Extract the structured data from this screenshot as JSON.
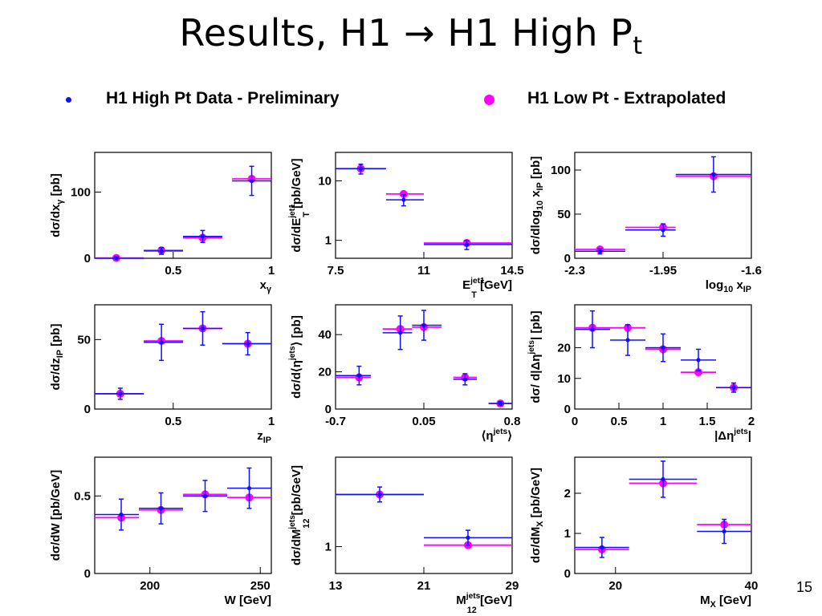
{
  "slide": {
    "title_main": "Results, H1 → H1 High P",
    "title_sub": "t",
    "page_number": "15"
  },
  "legend": {
    "data_label": "H1 High Pt Data - Preliminary",
    "data_color": "#1010ff",
    "pred_label": "H1 Low Pt - Extrapolated",
    "pred_color": "#ff00ff"
  },
  "chart_data": [
    {
      "type": "scatter",
      "xlim": [
        0.1,
        1.0
      ],
      "ylim": [
        0,
        160
      ],
      "ylog": false,
      "xticks": [
        {
          "v": 0.5,
          "l": "0.5"
        },
        {
          "v": 1,
          "l": "1"
        }
      ],
      "yticks": [
        {
          "v": 0,
          "l": "0"
        },
        {
          "v": 100,
          "l": "100"
        }
      ],
      "ylabel": [
        {
          "t": "dσ/dx"
        },
        {
          "t": "γ",
          "s": "sub"
        },
        {
          "t": " [pb]"
        }
      ],
      "xlabel": [
        {
          "t": "x"
        },
        {
          "t": "γ",
          "s": "sub"
        }
      ],
      "data": [
        {
          "x": 0.21,
          "xlo": 0.1,
          "xhi": 0.35,
          "y": 0,
          "yerr": 2
        },
        {
          "x": 0.44,
          "xlo": 0.35,
          "xhi": 0.55,
          "y": 11,
          "yerr": 5
        },
        {
          "x": 0.65,
          "xlo": 0.55,
          "xhi": 0.75,
          "y": 33,
          "yerr": 9
        },
        {
          "x": 0.9,
          "xlo": 0.8,
          "xhi": 1.0,
          "y": 117,
          "yerr": 22
        }
      ],
      "pred": [
        {
          "x": 0.21,
          "xlo": 0.1,
          "xhi": 0.35,
          "y": 0.5
        },
        {
          "x": 0.44,
          "xlo": 0.35,
          "xhi": 0.55,
          "y": 12
        },
        {
          "x": 0.65,
          "xlo": 0.55,
          "xhi": 0.75,
          "y": 31
        },
        {
          "x": 0.9,
          "xlo": 0.8,
          "xhi": 1.0,
          "y": 120
        }
      ]
    },
    {
      "type": "scatter",
      "xlim": [
        7.5,
        14.5
      ],
      "ylim": [
        0.5,
        30
      ],
      "ylog": true,
      "xticks": [
        {
          "v": 7.5,
          "l": "7.5"
        },
        {
          "v": 11,
          "l": "11"
        },
        {
          "v": 14.5,
          "l": "14.5"
        }
      ],
      "yticks": [
        {
          "v": 1,
          "l": "1"
        },
        {
          "v": 10,
          "l": "10"
        }
      ],
      "ylabel": [
        {
          "t": "dσ/dE"
        },
        {
          "t": "jet1",
          "s": "sup"
        },
        {
          "t": "T",
          "s": "subk"
        },
        {
          "t": " [pb/GeV]"
        }
      ],
      "xlabel": [
        {
          "t": "E"
        },
        {
          "t": "jet1",
          "s": "sup"
        },
        {
          "t": "T",
          "s": "subk"
        },
        {
          "t": " [GeV]"
        }
      ],
      "data": [
        {
          "x": 8.5,
          "xlo": 7.5,
          "xhi": 9.5,
          "y": 16,
          "yerr": 3
        },
        {
          "x": 10.2,
          "xlo": 9.5,
          "xhi": 11,
          "y": 4.8,
          "yerr": 1
        },
        {
          "x": 12.7,
          "xlo": 11,
          "xhi": 14.5,
          "y": 0.85,
          "yerr": 0.15
        }
      ],
      "pred": [
        {
          "x": 8.5,
          "xlo": 7.5,
          "xhi": 9.5,
          "y": 16
        },
        {
          "x": 10.2,
          "xlo": 9.5,
          "xhi": 11,
          "y": 6
        },
        {
          "x": 12.7,
          "xlo": 11,
          "xhi": 14.5,
          "y": 0.9
        }
      ]
    },
    {
      "type": "scatter",
      "xlim": [
        -2.3,
        -1.6
      ],
      "ylim": [
        0,
        120
      ],
      "ylog": false,
      "xticks": [
        {
          "v": -2.3,
          "l": "-2.3"
        },
        {
          "v": -1.95,
          "l": "-1.95"
        },
        {
          "v": -1.6,
          "l": "-1.6"
        }
      ],
      "yticks": [
        {
          "v": 0,
          "l": "0"
        },
        {
          "v": 50,
          "l": "50"
        },
        {
          "v": 100,
          "l": "100"
        }
      ],
      "ylabel": [
        {
          "t": "dσ/dlog"
        },
        {
          "t": "10",
          "s": "sub"
        },
        {
          "t": " x"
        },
        {
          "t": "IP",
          "s": "sub"
        },
        {
          "t": " [pb]"
        }
      ],
      "xlabel": [
        {
          "t": "log"
        },
        {
          "t": "10",
          "s": "sub"
        },
        {
          "t": " x"
        },
        {
          "t": "IP",
          "s": "sub"
        }
      ],
      "data": [
        {
          "x": -2.2,
          "xlo": -2.3,
          "xhi": -2.1,
          "y": 8,
          "yerr": 3
        },
        {
          "x": -1.95,
          "xlo": -2.1,
          "xhi": -1.9,
          "y": 32,
          "yerr": 7
        },
        {
          "x": -1.75,
          "xlo": -1.9,
          "xhi": -1.6,
          "y": 95,
          "yerr": 20
        }
      ],
      "pred": [
        {
          "x": -2.2,
          "xlo": -2.3,
          "xhi": -2.1,
          "y": 10
        },
        {
          "x": -1.95,
          "xlo": -2.1,
          "xhi": -1.9,
          "y": 35
        },
        {
          "x": -1.75,
          "xlo": -1.9,
          "xhi": -1.6,
          "y": 93
        }
      ]
    },
    {
      "type": "scatter",
      "xlim": [
        0.1,
        1.0
      ],
      "ylim": [
        0,
        75
      ],
      "ylog": false,
      "xticks": [
        {
          "v": 0.5,
          "l": "0.5"
        },
        {
          "v": 1,
          "l": "1"
        }
      ],
      "yticks": [
        {
          "v": 0,
          "l": "0"
        },
        {
          "v": 50,
          "l": "50"
        }
      ],
      "ylabel": [
        {
          "t": "dσ/dz"
        },
        {
          "t": "IP",
          "s": "sub"
        },
        {
          "t": " [pb]"
        }
      ],
      "xlabel": [
        {
          "t": "z"
        },
        {
          "t": "IP",
          "s": "sub"
        }
      ],
      "data": [
        {
          "x": 0.23,
          "xlo": 0.1,
          "xhi": 0.35,
          "y": 11,
          "yerr": 4
        },
        {
          "x": 0.44,
          "xlo": 0.35,
          "xhi": 0.55,
          "y": 48,
          "yerr": 13
        },
        {
          "x": 0.65,
          "xlo": 0.55,
          "xhi": 0.75,
          "y": 58,
          "yerr": 12
        },
        {
          "x": 0.88,
          "xlo": 0.75,
          "xhi": 1.0,
          "y": 47,
          "yerr": 8
        }
      ],
      "pred": [
        {
          "x": 0.23,
          "xlo": 0.1,
          "xhi": 0.35,
          "y": 11
        },
        {
          "x": 0.44,
          "xlo": 0.35,
          "xhi": 0.55,
          "y": 49
        },
        {
          "x": 0.65,
          "xlo": 0.55,
          "xhi": 0.75,
          "y": 58
        },
        {
          "x": 0.88,
          "xlo": 0.75,
          "xhi": 1.0,
          "y": 47
        }
      ]
    },
    {
      "type": "scatter",
      "xlim": [
        -0.7,
        0.8
      ],
      "ylim": [
        0,
        56
      ],
      "ylog": false,
      "xticks": [
        {
          "v": -0.7,
          "l": "-0.7"
        },
        {
          "v": 0.05,
          "l": "0.05"
        },
        {
          "v": 0.8,
          "l": "0.8"
        }
      ],
      "yticks": [
        {
          "v": 0,
          "l": "0"
        },
        {
          "v": 20,
          "l": "20"
        },
        {
          "v": 40,
          "l": "40"
        }
      ],
      "ylabel": [
        {
          "t": "dσ/d⟨η"
        },
        {
          "t": "jets",
          "s": "sup"
        },
        {
          "t": "⟩ [pb]"
        }
      ],
      "xlabel": [
        {
          "t": "⟨η"
        },
        {
          "t": "jets",
          "s": "sup"
        },
        {
          "t": "⟩"
        }
      ],
      "data": [
        {
          "x": -0.5,
          "xlo": -0.7,
          "xhi": -0.4,
          "y": 18,
          "yerr": 5
        },
        {
          "x": -0.15,
          "xlo": -0.3,
          "xhi": -0.05,
          "y": 41,
          "yerr": 9
        },
        {
          "x": 0.05,
          "xlo": -0.05,
          "xhi": 0.2,
          "y": 45,
          "yerr": 8
        },
        {
          "x": 0.4,
          "xlo": 0.3,
          "xhi": 0.5,
          "y": 16,
          "yerr": 3
        },
        {
          "x": 0.7,
          "xlo": 0.6,
          "xhi": 0.8,
          "y": 3,
          "yerr": 1
        }
      ],
      "pred": [
        {
          "x": -0.5,
          "xlo": -0.7,
          "xhi": -0.4,
          "y": 17
        },
        {
          "x": -0.15,
          "xlo": -0.3,
          "xhi": -0.05,
          "y": 43
        },
        {
          "x": 0.05,
          "xlo": -0.05,
          "xhi": 0.2,
          "y": 44
        },
        {
          "x": 0.4,
          "xlo": 0.3,
          "xhi": 0.5,
          "y": 17
        },
        {
          "x": 0.7,
          "xlo": 0.6,
          "xhi": 0.8,
          "y": 3
        }
      ]
    },
    {
      "type": "scatter",
      "xlim": [
        0,
        2.0
      ],
      "ylim": [
        0,
        34
      ],
      "ylog": false,
      "xticks": [
        {
          "v": 0,
          "l": "0"
        },
        {
          "v": 0.5,
          "l": "0.5"
        },
        {
          "v": 1,
          "l": "1"
        },
        {
          "v": 1.5,
          "l": "1.5"
        },
        {
          "v": 2,
          "l": "2"
        }
      ],
      "yticks": [
        {
          "v": 0,
          "l": "0"
        },
        {
          "v": 10,
          "l": "10"
        },
        {
          "v": 20,
          "l": "20"
        }
      ],
      "ylabel": [
        {
          "t": "dσ/ d|Δη"
        },
        {
          "t": "jets",
          "s": "sup"
        },
        {
          "t": "| [pb]"
        }
      ],
      "xlabel": [
        {
          "t": "|Δη"
        },
        {
          "t": "jets",
          "s": "sup"
        },
        {
          "t": "|"
        }
      ],
      "data": [
        {
          "x": 0.2,
          "xlo": 0,
          "xhi": 0.4,
          "y": 26,
          "yerr": 6
        },
        {
          "x": 0.6,
          "xlo": 0.4,
          "xhi": 0.8,
          "y": 22.5,
          "yerr": 5
        },
        {
          "x": 1.0,
          "xlo": 0.8,
          "xhi": 1.2,
          "y": 20,
          "yerr": 4.5
        },
        {
          "x": 1.4,
          "xlo": 1.2,
          "xhi": 1.6,
          "y": 16,
          "yerr": 3.5
        },
        {
          "x": 1.8,
          "xlo": 1.6,
          "xhi": 2.0,
          "y": 7,
          "yerr": 1.5
        }
      ],
      "pred": [
        {
          "x": 0.2,
          "xlo": 0,
          "xhi": 0.4,
          "y": 26.5
        },
        {
          "x": 0.6,
          "xlo": 0.4,
          "xhi": 0.8,
          "y": 26.5
        },
        {
          "x": 1.0,
          "xlo": 0.8,
          "xhi": 1.2,
          "y": 19.5
        },
        {
          "x": 1.4,
          "xlo": 1.2,
          "xhi": 1.6,
          "y": 12
        },
        {
          "x": 1.8,
          "xlo": 1.6,
          "xhi": 2.0,
          "y": 7
        }
      ]
    },
    {
      "type": "scatter",
      "xlim": [
        175,
        255
      ],
      "ylim": [
        0,
        0.75
      ],
      "ylog": false,
      "xticks": [
        {
          "v": 200,
          "l": "200"
        },
        {
          "v": 250,
          "l": "250"
        }
      ],
      "yticks": [
        {
          "v": 0,
          "l": "0"
        },
        {
          "v": 0.5,
          "l": "0.5"
        }
      ],
      "ylabel": [
        {
          "t": "dσ/dW [pb/GeV]"
        }
      ],
      "xlabel": [
        {
          "t": "W [GeV]"
        }
      ],
      "data": [
        {
          "x": 187,
          "xlo": 175,
          "xhi": 195,
          "y": 0.38,
          "yerr": 0.1
        },
        {
          "x": 205,
          "xlo": 195,
          "xhi": 215,
          "y": 0.42,
          "yerr": 0.1
        },
        {
          "x": 225,
          "xlo": 215,
          "xhi": 235,
          "y": 0.5,
          "yerr": 0.1
        },
        {
          "x": 245,
          "xlo": 235,
          "xhi": 255,
          "y": 0.55,
          "yerr": 0.13
        }
      ],
      "pred": [
        {
          "x": 187,
          "xlo": 175,
          "xhi": 195,
          "y": 0.36
        },
        {
          "x": 205,
          "xlo": 195,
          "xhi": 215,
          "y": 0.41
        },
        {
          "x": 225,
          "xlo": 215,
          "xhi": 235,
          "y": 0.51
        },
        {
          "x": 245,
          "xlo": 235,
          "xhi": 255,
          "y": 0.49
        }
      ]
    },
    {
      "type": "scatter",
      "xlim": [
        13,
        29
      ],
      "ylim": [
        0.82,
        1.6
      ],
      "ylog": false,
      "xticks": [
        {
          "v": 13,
          "l": "13"
        },
        {
          "v": 21,
          "l": "21"
        },
        {
          "v": 29,
          "l": "29"
        }
      ],
      "yticks": [
        {
          "v": 1,
          "l": "1"
        }
      ],
      "ylabel": [
        {
          "t": "dσ/dM"
        },
        {
          "t": "jets",
          "s": "sup"
        },
        {
          "t": "12",
          "s": "subk"
        },
        {
          "t": " [pb/GeV]"
        }
      ],
      "xlabel": [
        {
          "t": "M"
        },
        {
          "t": "jets",
          "s": "sup"
        },
        {
          "t": "12",
          "s": "subk"
        },
        {
          "t": " [GeV]"
        }
      ],
      "data": [
        {
          "x": 17,
          "xlo": 13,
          "xhi": 21,
          "y": 1.35,
          "yerr": 0.05
        },
        {
          "x": 25,
          "xlo": 21,
          "xhi": 29,
          "y": 1.06,
          "yerr": 0.05
        }
      ],
      "pred": [
        {
          "x": 17,
          "xlo": 13,
          "xhi": 21,
          "y": 1.35
        },
        {
          "x": 25,
          "xlo": 21,
          "xhi": 29,
          "y": 1.01
        }
      ]
    },
    {
      "type": "scatter",
      "xlim": [
        14,
        40
      ],
      "ylim": [
        0,
        2.9
      ],
      "ylog": false,
      "xticks": [
        {
          "v": 20,
          "l": "20"
        },
        {
          "v": 40,
          "l": "40"
        }
      ],
      "yticks": [
        {
          "v": 0,
          "l": "0"
        },
        {
          "v": 1,
          "l": "1"
        },
        {
          "v": 2,
          "l": "2"
        }
      ],
      "ylabel": [
        {
          "t": "dσ/dM"
        },
        {
          "t": "X",
          "s": "sub"
        },
        {
          "t": " [pb/GeV]"
        }
      ],
      "xlabel": [
        {
          "t": "M"
        },
        {
          "t": "X",
          "s": "sub"
        },
        {
          "t": " [GeV]"
        }
      ],
      "data": [
        {
          "x": 18,
          "xlo": 14,
          "xhi": 22,
          "y": 0.65,
          "yerr": 0.25
        },
        {
          "x": 27,
          "xlo": 22,
          "xhi": 32,
          "y": 2.35,
          "yerr": 0.45
        },
        {
          "x": 36,
          "xlo": 32,
          "xhi": 40,
          "y": 1.05,
          "yerr": 0.3
        }
      ],
      "pred": [
        {
          "x": 18,
          "xlo": 14,
          "xhi": 22,
          "y": 0.6
        },
        {
          "x": 27,
          "xlo": 22,
          "xhi": 32,
          "y": 2.25
        },
        {
          "x": 36,
          "xlo": 32,
          "xhi": 40,
          "y": 1.22
        }
      ]
    }
  ]
}
